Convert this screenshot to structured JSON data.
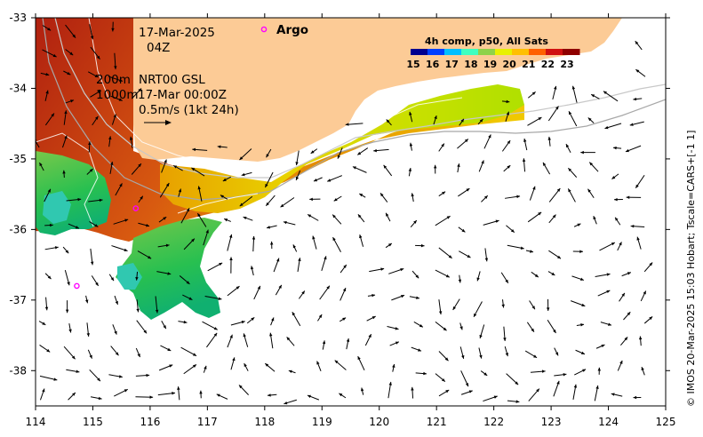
{
  "map": {
    "date": "17-Mar-2025",
    "time": "04Z",
    "depth_contour_1": "200m",
    "depth_contour_2": "1000m",
    "current_product": "NRT00 GSL",
    "current_time": "17-Mar 00:00Z",
    "scale_label": "0.5m/s (1kt 24h)",
    "credit": "© IMOS 20-Mar-2025 15:03 Hobart; Tscale=CARS+[-1 1]",
    "colors": {
      "land": "#fccb96",
      "ocean": "#ffffff",
      "argo": "#ff00ff"
    }
  },
  "legend": {
    "title": "4h comp, p50, All Sats",
    "ticks": [
      "15",
      "16",
      "17",
      "18",
      "19",
      "20",
      "21",
      "22",
      "23"
    ],
    "colors": [
      "#00008f",
      "#0040ff",
      "#00bfff",
      "#40ffbf",
      "#8fd24a",
      "#e8f000",
      "#ffbf00",
      "#ff6000",
      "#d01010",
      "#8f0000"
    ]
  },
  "argo": {
    "label": "Argo",
    "floats": [
      {
        "lon": 115.75,
        "lat": -35.7
      },
      {
        "lon": 114.72,
        "lat": -36.8
      }
    ]
  },
  "axes": {
    "x_labels": [
      "114",
      "115",
      "116",
      "117",
      "118",
      "119",
      "120",
      "121",
      "122",
      "123",
      "124",
      "125"
    ],
    "y_labels": [
      "-33",
      "-34",
      "-35",
      "-36",
      "-37",
      "-38"
    ],
    "lon_range": [
      114,
      125
    ],
    "lat_range": [
      -38.5,
      -33
    ]
  }
}
